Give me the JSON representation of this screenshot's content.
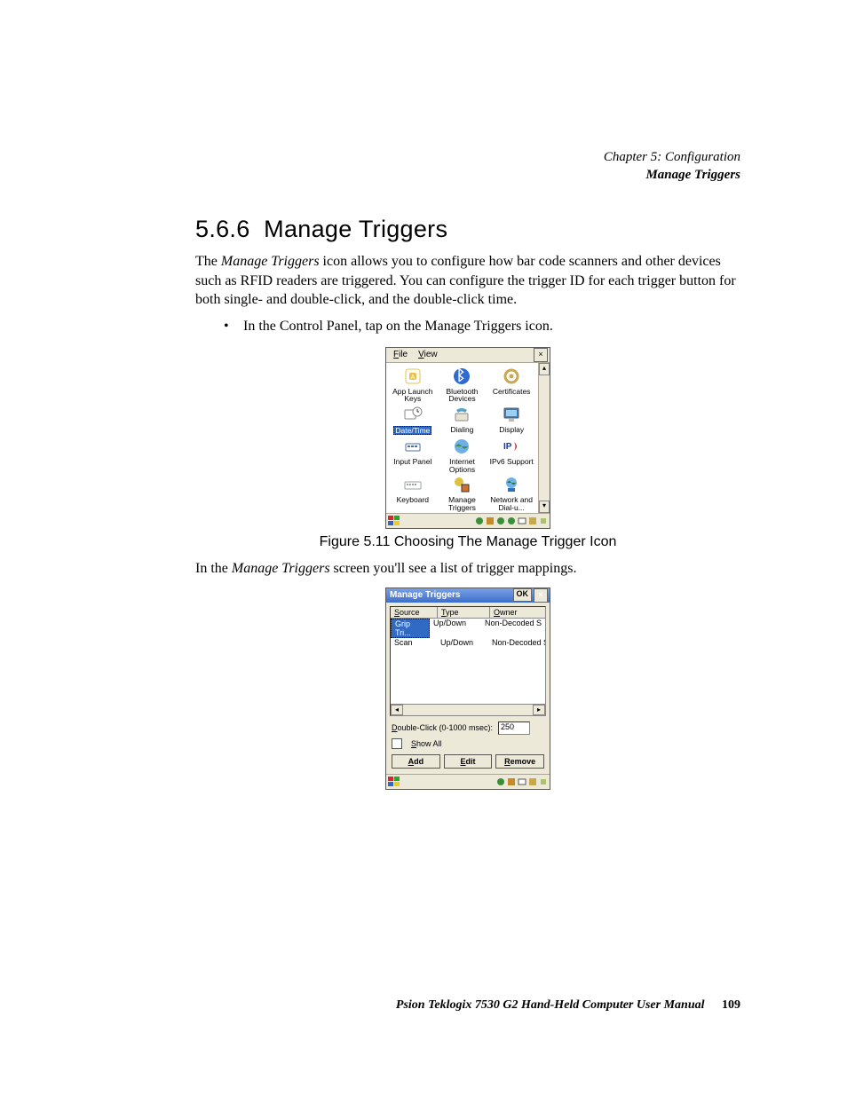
{
  "header": {
    "chapter": "Chapter  5:  Configuration",
    "section": "Manage Triggers"
  },
  "heading": {
    "num": "5.6.6",
    "title": "Manage Triggers"
  },
  "para1": {
    "lead": "The ",
    "ital": "Manage Triggers",
    "rest": " icon allows you to configure how bar code scanners and other devices such as RFID readers are triggered. You can configure the trigger ID for each trigger button for both single- and double-click, and the double-click time."
  },
  "bullet": {
    "pre": "In the ",
    "ital": "Control Panel",
    "mid": ", tap on the ",
    "bold": "Manage Triggers",
    "post": " icon."
  },
  "figure1": {
    "caption": "Figure 5.11 Choosing The Manage Trigger Icon"
  },
  "para2": {
    "pre": "In the ",
    "ital": "Manage Triggers",
    "post": " screen you'll see a list of trigger mappings."
  },
  "shot1": {
    "menu": {
      "file": "File",
      "view": "View"
    },
    "items": [
      {
        "name": "app-launch-keys",
        "label": "App Launch Keys",
        "color": "#e6c24a",
        "shape": "key"
      },
      {
        "name": "bluetooth-devices",
        "label": "Bluetooth Devices",
        "color": "#2f6ad1",
        "shape": "bt"
      },
      {
        "name": "certificates",
        "label": "Certificates",
        "color": "#c9a84f",
        "shape": "gear"
      },
      {
        "name": "date-time",
        "label": "Date/Time",
        "color": "#a9a08a",
        "shape": "clock",
        "selected": true
      },
      {
        "name": "dialing",
        "label": "Dialing",
        "color": "#5aa0c8",
        "shape": "phone"
      },
      {
        "name": "display",
        "label": "Display",
        "color": "#3a7fbf",
        "shape": "display"
      },
      {
        "name": "input-panel",
        "label": "Input Panel",
        "color": "#4a6fb0",
        "shape": "panel"
      },
      {
        "name": "internet-options",
        "label": "Internet Options",
        "color": "#3a8f3a",
        "shape": "globe"
      },
      {
        "name": "ipv6-support",
        "label": "IPv6 Support",
        "color": "#c23030",
        "shape": "ipv6"
      },
      {
        "name": "keyboard",
        "label": "Keyboard",
        "color": "#9aa0a0",
        "shape": "kbd"
      },
      {
        "name": "manage-triggers",
        "label": "Manage Triggers",
        "color": "#e0c040",
        "shape": "trig"
      },
      {
        "name": "network-dialup",
        "label": "Network and Dial-u...",
        "color": "#3070b8",
        "shape": "net"
      }
    ]
  },
  "shot2": {
    "title": "Manage  Triggers",
    "ok": "OK",
    "columns": {
      "c1": "Source",
      "c2": "Type",
      "c3": "Owner"
    },
    "rows": [
      {
        "c1": "Grip Tri...",
        "c2": "Up/Down",
        "c3": "Non-Decoded S",
        "selected": true
      },
      {
        "c1": "Scan",
        "c2": "Up/Down",
        "c3": "Non-Decoded S",
        "selected": false
      }
    ],
    "dblclick_label": "Double-Click (0-1000 msec):",
    "dblclick_value": "250",
    "showall": "Show All",
    "buttons": {
      "add": "Add",
      "edit": "Edit",
      "remove": "Remove"
    }
  },
  "footer": {
    "text": "Psion Teklogix 7530 G2 Hand-Held Computer User Manual",
    "page": "109"
  },
  "colors": {
    "page_bg": "#ffffff",
    "win_bg": "#ece9d8",
    "titlebar_from": "#7aa1e6",
    "titlebar_to": "#3b6ecb",
    "selection": "#316ac5"
  }
}
